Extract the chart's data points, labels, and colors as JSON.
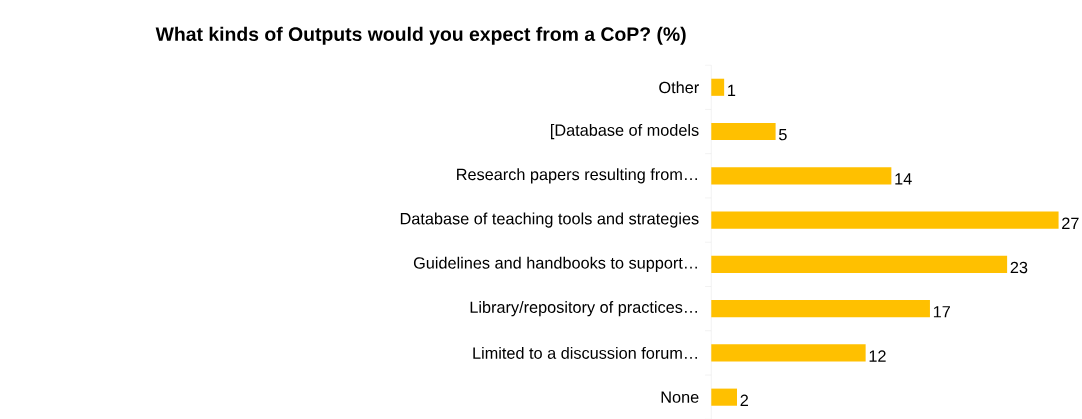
{
  "chart_data": {
    "type": "bar",
    "orientation": "horizontal",
    "title": "What kinds of Outputs would you expect from a CoP? (%)",
    "categories": [
      "Other",
      "[Database of models",
      "Research papers resulting from…",
      "Database of teaching tools and strategies",
      "Guidelines and handbooks to support…",
      "Library/repository of practices…",
      "Limited to a discussion forum…",
      "None"
    ],
    "values": [
      1,
      5,
      14,
      27,
      23,
      17,
      12,
      2
    ],
    "color": "#ffc000",
    "data_labels": true
  }
}
